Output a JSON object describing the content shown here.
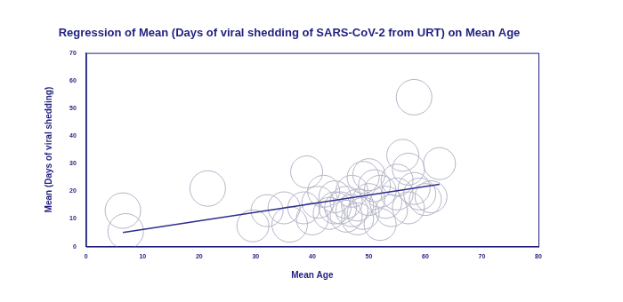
{
  "chart_data": {
    "type": "bubble",
    "title": "Regression of Mean (Days of viral shedding of SARS-CoV-2 from URT) on Mean Age",
    "x_label": "Mean Age",
    "y_label": "Mean (Days of viral shedding)",
    "xlim": [
      0,
      80
    ],
    "xticks": [
      0,
      10,
      20,
      30,
      40,
      50,
      60,
      70,
      80
    ],
    "ylim": [
      0,
      70
    ],
    "yticks": [
      0,
      10,
      20,
      30,
      40,
      50,
      60,
      70
    ],
    "grid": false,
    "series": [
      {
        "type": "bubble",
        "color": "#b4b4c8",
        "x": [
          6.5,
          7,
          21.5,
          29.5,
          32,
          36,
          38.5,
          39,
          40,
          41,
          42,
          43,
          44,
          45,
          46,
          46,
          47,
          47,
          48,
          48,
          49,
          49,
          50,
          50,
          51,
          52,
          53,
          54,
          55,
          55,
          56,
          57,
          57,
          58,
          58,
          59,
          60,
          61,
          62.5,
          44,
          52,
          35
        ],
        "values": [
          13,
          5.5,
          21,
          7.5,
          13,
          8,
          14,
          27,
          10,
          16,
          20,
          12,
          18,
          14,
          11,
          16,
          13,
          20,
          15,
          10,
          25,
          12,
          17,
          26,
          22,
          8,
          16,
          13,
          24,
          19,
          33,
          28,
          14,
          54,
          21,
          19,
          17,
          18,
          30,
          14,
          20,
          14
        ],
        "sizes": [
          20,
          20,
          20,
          18,
          18,
          20,
          18,
          18,
          18,
          18,
          18,
          18,
          18,
          18,
          18,
          18,
          18,
          18,
          18,
          18,
          18,
          18,
          18,
          18,
          18,
          18,
          18,
          18,
          18,
          18,
          18,
          18,
          18,
          20,
          18,
          18,
          18,
          18,
          18,
          18,
          18,
          18
        ]
      },
      {
        "type": "line",
        "color": "#2e2e8c",
        "x": [
          6.5,
          62.5
        ],
        "values": [
          5.1,
          22.5
        ]
      }
    ]
  }
}
